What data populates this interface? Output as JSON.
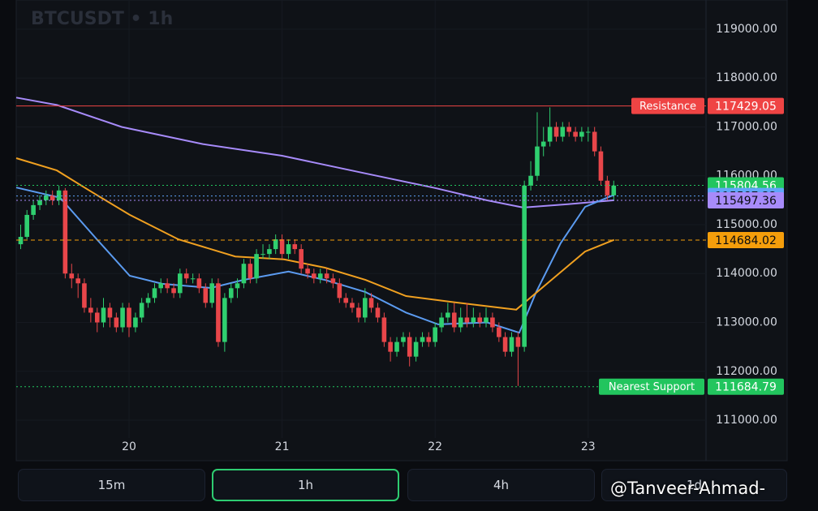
{
  "chart_data": {
    "type": "candlestick",
    "title": "BTCUSDT • 1h",
    "up_color": "#2fcf6f",
    "down_color": "#e8464a",
    "xlim": [
      19.263,
      23.77
    ],
    "xticks": [
      20,
      21,
      22,
      23
    ],
    "ylim": [
      110635,
      119597
    ],
    "yticks": [
      {
        "value": 111000,
        "label": "111000.00"
      },
      {
        "value": 112000,
        "label": "112000.00"
      },
      {
        "value": 113000,
        "label": "113000.00"
      },
      {
        "value": 114000,
        "label": "114000.00"
      },
      {
        "value": 115000,
        "label": "115000.00"
      },
      {
        "value": 116000,
        "label": "116000.00"
      },
      {
        "value": 117000,
        "label": "117000.00"
      },
      {
        "value": 118000,
        "label": "118000.00"
      },
      {
        "value": 119000,
        "label": "119000.00"
      }
    ],
    "x": [
      19.292,
      19.333,
      19.375,
      19.417,
      19.458,
      19.5,
      19.542,
      19.583,
      19.625,
      19.667,
      19.708,
      19.75,
      19.792,
      19.833,
      19.875,
      19.917,
      19.958,
      20,
      20.042,
      20.083,
      20.125,
      20.167,
      20.208,
      20.25,
      20.292,
      20.333,
      20.375,
      20.417,
      20.458,
      20.5,
      20.542,
      20.583,
      20.625,
      20.667,
      20.708,
      20.75,
      20.792,
      20.833,
      20.875,
      20.917,
      20.958,
      21,
      21.042,
      21.083,
      21.125,
      21.167,
      21.208,
      21.25,
      21.292,
      21.333,
      21.375,
      21.417,
      21.458,
      21.5,
      21.542,
      21.583,
      21.625,
      21.667,
      21.708,
      21.75,
      21.792,
      21.833,
      21.875,
      21.917,
      21.958,
      22,
      22.042,
      22.083,
      22.125,
      22.167,
      22.208,
      22.25,
      22.292,
      22.333,
      22.375,
      22.417,
      22.458,
      22.5,
      22.542,
      22.583,
      22.625,
      22.667,
      22.708,
      22.75,
      22.792,
      22.833,
      22.875,
      22.917,
      22.958,
      23,
      23.042,
      23.083,
      23.125,
      23.167
    ],
    "candles": [
      [
        114600,
        115000,
        114500,
        114750
      ],
      [
        114750,
        115300,
        114700,
        115200
      ],
      [
        115200,
        115500,
        115100,
        115400
      ],
      [
        115400,
        115600,
        115300,
        115500
      ],
      [
        115500,
        115700,
        115400,
        115600
      ],
      [
        115600,
        115700,
        115400,
        115500
      ],
      [
        115500,
        115800,
        115400,
        115700
      ],
      [
        115700,
        115750,
        113900,
        114000
      ],
      [
        114000,
        114200,
        113700,
        113900
      ],
      [
        113900,
        114000,
        113500,
        113800
      ],
      [
        113800,
        113900,
        113200,
        113300
      ],
      [
        113300,
        113500,
        113000,
        113200
      ],
      [
        113200,
        113300,
        112800,
        113000
      ],
      [
        113000,
        113500,
        112900,
        113300
      ],
      [
        113300,
        113400,
        112900,
        113100
      ],
      [
        113100,
        113200,
        112800,
        112900
      ],
      [
        112900,
        113400,
        112800,
        113300
      ],
      [
        113300,
        113400,
        112700,
        112900
      ],
      [
        112900,
        113200,
        112800,
        113100
      ],
      [
        113100,
        113500,
        113000,
        113400
      ],
      [
        113400,
        113600,
        113300,
        113500
      ],
      [
        113500,
        113800,
        113400,
        113700
      ],
      [
        113700,
        113900,
        113600,
        113800
      ],
      [
        113800,
        113900,
        113600,
        113700
      ],
      [
        113700,
        113800,
        113500,
        113600
      ],
      [
        113600,
        114100,
        113500,
        114000
      ],
      [
        114000,
        114100,
        113800,
        113900
      ],
      [
        113900,
        114000,
        113800,
        113900
      ],
      [
        113900,
        114000,
        113600,
        113700
      ],
      [
        113700,
        113800,
        113300,
        113400
      ],
      [
        113400,
        113900,
        113300,
        113800
      ],
      [
        113800,
        113900,
        112500,
        112600
      ],
      [
        112600,
        113600,
        112400,
        113500
      ],
      [
        113500,
        113800,
        113400,
        113700
      ],
      [
        113700,
        113900,
        113500,
        113800
      ],
      [
        113800,
        114300,
        113700,
        114200
      ],
      [
        114200,
        114300,
        113800,
        113900
      ],
      [
        113900,
        114500,
        113800,
        114400
      ],
      [
        114400,
        114600,
        114300,
        114400
      ],
      [
        114400,
        114600,
        114300,
        114500
      ],
      [
        114500,
        114800,
        114400,
        114700
      ],
      [
        114700,
        114800,
        114300,
        114400
      ],
      [
        114400,
        114700,
        114300,
        114600
      ],
      [
        114600,
        114700,
        114400,
        114500
      ],
      [
        114500,
        114600,
        114000,
        114100
      ],
      [
        114100,
        114200,
        113900,
        114000
      ],
      [
        114000,
        114100,
        113800,
        113900
      ],
      [
        113900,
        114100,
        113800,
        114000
      ],
      [
        114000,
        114100,
        113800,
        113900
      ],
      [
        113900,
        114000,
        113700,
        113800
      ],
      [
        113800,
        113900,
        113400,
        113500
      ],
      [
        113500,
        113600,
        113300,
        113400
      ],
      [
        113400,
        113500,
        113200,
        113300
      ],
      [
        113300,
        113400,
        113000,
        113100
      ],
      [
        113100,
        113700,
        113000,
        113500
      ],
      [
        113500,
        113600,
        113200,
        113300
      ],
      [
        113300,
        113400,
        113000,
        113100
      ],
      [
        113100,
        113200,
        112500,
        112600
      ],
      [
        112600,
        112700,
        112200,
        112400
      ],
      [
        112400,
        112700,
        112300,
        112600
      ],
      [
        112600,
        112800,
        112500,
        112700
      ],
      [
        112700,
        112800,
        112100,
        112300
      ],
      [
        112300,
        112700,
        112200,
        112600
      ],
      [
        112600,
        112800,
        112500,
        112700
      ],
      [
        112700,
        112800,
        112500,
        112600
      ],
      [
        112600,
        113000,
        112500,
        112900
      ],
      [
        112900,
        113200,
        112800,
        113100
      ],
      [
        113100,
        113400,
        113000,
        113200
      ],
      [
        113200,
        113400,
        112800,
        112900
      ],
      [
        112900,
        113300,
        112800,
        113100
      ],
      [
        113100,
        113400,
        112900,
        113000
      ],
      [
        113000,
        113300,
        112900,
        113100
      ],
      [
        113100,
        113200,
        112900,
        113000
      ],
      [
        113000,
        113300,
        112900,
        113100
      ],
      [
        113100,
        113200,
        112800,
        112900
      ],
      [
        112900,
        113000,
        112600,
        112700
      ],
      [
        112700,
        112800,
        112300,
        112400
      ],
      [
        112400,
        112800,
        112300,
        112700
      ],
      [
        112700,
        112800,
        111700,
        112500
      ],
      [
        112500,
        115900,
        112400,
        115800
      ],
      [
        115800,
        116300,
        115700,
        116000
      ],
      [
        116000,
        117300,
        115900,
        116600
      ],
      [
        116600,
        117000,
        116400,
        116700
      ],
      [
        116700,
        117400,
        116600,
        117000
      ],
      [
        117000,
        117100,
        116700,
        116800
      ],
      [
        116800,
        117100,
        116700,
        117000
      ],
      [
        117000,
        117100,
        116800,
        116900
      ],
      [
        116900,
        117000,
        116700,
        116800
      ],
      [
        116800,
        117000,
        116700,
        116900
      ],
      [
        116900,
        117000,
        116700,
        116900
      ],
      [
        116900,
        117000,
        116400,
        116500
      ],
      [
        116500,
        116600,
        115800,
        115900
      ],
      [
        115900,
        116000,
        115500,
        115600
      ],
      [
        115600,
        115900,
        115500,
        115800
      ]
    ],
    "lines": [
      {
        "color": "#a78bfa",
        "x": [
          19.263,
          19.528,
          19.952,
          20.482,
          21.0,
          21.542,
          22.0,
          22.337,
          22.576,
          22.867,
          23.169
        ],
        "values": [
          117600,
          117450,
          117000,
          116650,
          116410,
          116050,
          115750,
          115500,
          115350,
          115420,
          115500
        ]
      },
      {
        "color": "#5b9bf0",
        "x": [
          19.263,
          19.55,
          19.79,
          20.005,
          20.217,
          20.535,
          20.747,
          21.042,
          21.28,
          21.545,
          21.81,
          22.02,
          22.34,
          22.55,
          22.66,
          22.82,
          22.98,
          23.169
        ],
        "values": [
          115760,
          115550,
          114700,
          113955,
          113790,
          113705,
          113870,
          114040,
          113870,
          113620,
          113200,
          112960,
          113000,
          112790,
          113620,
          114620,
          115365,
          115610
        ]
      },
      {
        "color": "#f0a020",
        "x": [
          19.263,
          19.528,
          19.74,
          20.005,
          20.323,
          20.694,
          21.012,
          21.28,
          21.545,
          21.81,
          22.13,
          22.53,
          22.76,
          22.98,
          23.169
        ],
        "values": [
          116360,
          116110,
          115700,
          115200,
          114700,
          114350,
          114290,
          114120,
          113870,
          113540,
          113410,
          113260,
          113870,
          114450,
          114690
        ]
      }
    ],
    "price_lines": [
      {
        "label": "Resistance",
        "value": 117429.05,
        "color": "#ef4444",
        "style": "solid"
      },
      {
        "value": 115804.56,
        "color": "#22c55e",
        "style": "dotted"
      },
      {
        "value": 115587.32,
        "color": "#60a5fa",
        "style": "dotted"
      },
      {
        "value": 115497.36,
        "color": "#a78bfa",
        "style": "dotted"
      },
      {
        "value": 114684.02,
        "color": "#f59e0b",
        "style": "dashed"
      },
      {
        "label": "Nearest Support",
        "value": 111684.79,
        "color": "#22c55e",
        "style": "dotted"
      }
    ],
    "timeframes": [
      "15m",
      "1h",
      "4h",
      "1d"
    ],
    "selected_timeframe": 1,
    "watermark": "@Tanveer-Ahmad-"
  }
}
